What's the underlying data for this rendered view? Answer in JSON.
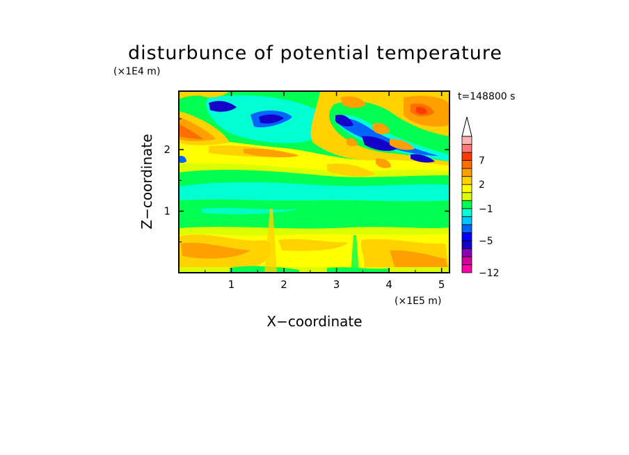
{
  "chart_data": {
    "type": "heatmap",
    "title": "disturbunce of potential temperature",
    "time_label": "t=148800 s",
    "xlabel": "X−coordinate",
    "ylabel": "Z−coordinate",
    "x_unit": "(×1E5 m)",
    "y_unit": "(×1E4 m)",
    "xlim": [
      0,
      5.15
    ],
    "ylim": [
      0,
      2.95
    ],
    "x_ticks": [
      1,
      2,
      3,
      4,
      5
    ],
    "y_ticks": [
      1,
      2
    ],
    "x_tick_labels": [
      "1",
      "2",
      "3",
      "4",
      "5"
    ],
    "y_tick_labels": [
      "1",
      "2"
    ],
    "colorbar": {
      "levels": [
        -12,
        -10,
        -8,
        -6,
        -5,
        -4,
        -3,
        -2,
        -1,
        0,
        1,
        2,
        3,
        5,
        7,
        9,
        11,
        13
      ],
      "labeled_ticks": [
        {
          "value": 7,
          "label": "7"
        },
        {
          "value": 2,
          "label": "2"
        },
        {
          "value": -1,
          "label": "−1"
        },
        {
          "value": -5,
          "label": "−5"
        },
        {
          "value": -12,
          "label": "−12"
        }
      ],
      "colors_bottom_to_top": [
        "#ff00a8",
        "#d2009e",
        "#8a00b4",
        "#1400c8",
        "#0000ff",
        "#0064ff",
        "#00c8ff",
        "#00ffd2",
        "#00ff50",
        "#dcff00",
        "#ffff00",
        "#ffd200",
        "#ffa000",
        "#ff6e00",
        "#ff3c00",
        "#ff7878",
        "#ffb4b4"
      ],
      "extend": "max"
    },
    "colors": {
      "yellow": "#ffff00",
      "lime": "#dcff00",
      "green": "#00ff50",
      "cyan": "#00ffd2",
      "blue": "#0064ff",
      "darkblue": "#1400c8",
      "orange": "#ffa000",
      "darkorange": "#ff6e00",
      "red": "#ff3c00"
    }
  }
}
